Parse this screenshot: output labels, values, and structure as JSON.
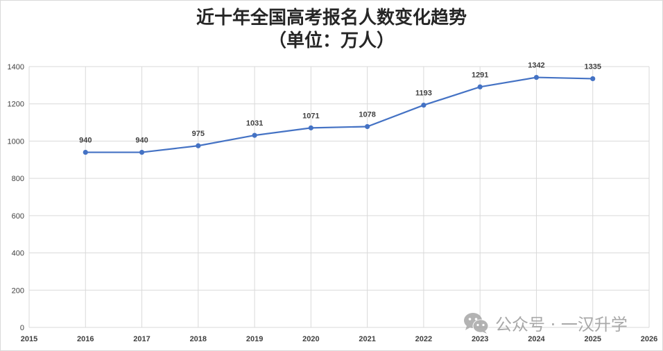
{
  "header": {
    "title_line1": "近十年全国高考报名人数变化趋势",
    "title_line2": "（单位：万人）"
  },
  "watermark": {
    "icon": "wechat-icon",
    "text": "公众号 · 一汉升学"
  },
  "colors": {
    "line": "#4472c4",
    "grid": "#d9d9d9",
    "text": "#404040",
    "title": "#262626"
  },
  "chart_data": {
    "type": "line",
    "title": "近十年全国高考报名人数变化趋势（单位：万人）",
    "xlabel": "",
    "ylabel": "",
    "x": [
      2016,
      2017,
      2018,
      2019,
      2020,
      2021,
      2022,
      2023,
      2024,
      2025
    ],
    "series": [
      {
        "name": "高考报名人数",
        "values": [
          940,
          940,
          975,
          1031,
          1071,
          1078,
          1193,
          1291,
          1342,
          1335
        ]
      }
    ],
    "data_labels": [
      "940",
      "940",
      "975",
      "1031",
      "1071",
      "1078",
      "1193",
      "1291",
      "1342",
      "1335"
    ],
    "xlim": [
      2015,
      2026
    ],
    "ylim": [
      0,
      1400
    ],
    "x_ticks": [
      "2015",
      "2016",
      "2017",
      "2018",
      "2019",
      "2020",
      "2021",
      "2022",
      "2023",
      "2024",
      "2025",
      "2026"
    ],
    "y_ticks": [
      "0",
      "200",
      "400",
      "600",
      "800",
      "1000",
      "1200",
      "1400"
    ],
    "grid": true,
    "legend": "none"
  }
}
